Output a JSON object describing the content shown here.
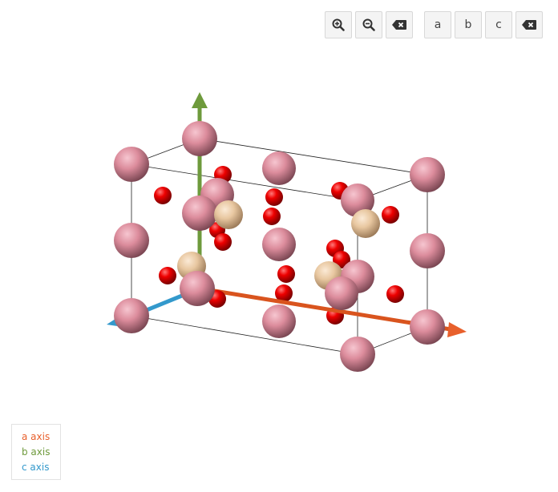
{
  "toolbar": {
    "zoom_in_icon": "zoom-in-icon",
    "zoom_out_icon": "zoom-out-icon",
    "reset_icon": "backspace-icon",
    "view_a_label": "a",
    "view_b_label": "b",
    "view_c_label": "c",
    "clear_icon": "backspace-icon"
  },
  "legend": {
    "a_axis": "a axis",
    "b_axis": "b axis",
    "c_axis": "c axis"
  },
  "colors": {
    "a_axis": "#e8602c",
    "b_axis": "#6e9a3c",
    "c_axis": "#3399cc",
    "atom_large": "#dc8c9c",
    "atom_oxygen": "#e00000",
    "atom_tan": "#e8c7a0",
    "cell_edge": "#000000"
  }
}
